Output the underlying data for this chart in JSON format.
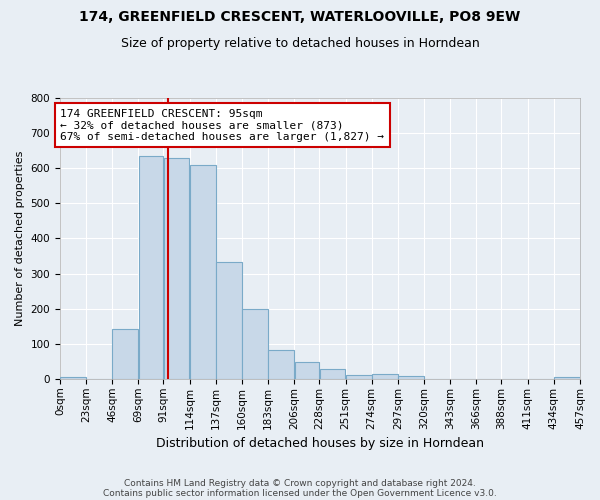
{
  "title1": "174, GREENFIELD CRESCENT, WATERLOOVILLE, PO8 9EW",
  "title2": "Size of property relative to detached houses in Horndean",
  "xlabel": "Distribution of detached houses by size in Horndean",
  "ylabel": "Number of detached properties",
  "bin_labels": [
    "0sqm",
    "23sqm",
    "46sqm",
    "69sqm",
    "91sqm",
    "114sqm",
    "137sqm",
    "160sqm",
    "183sqm",
    "206sqm",
    "228sqm",
    "251sqm",
    "274sqm",
    "297sqm",
    "320sqm",
    "343sqm",
    "366sqm",
    "388sqm",
    "411sqm",
    "434sqm",
    "457sqm"
  ],
  "bin_edges": [
    0,
    23,
    46,
    69,
    91,
    114,
    137,
    160,
    183,
    206,
    228,
    251,
    274,
    297,
    320,
    343,
    366,
    388,
    411,
    434,
    457
  ],
  "counts": [
    5,
    0,
    143,
    635,
    630,
    610,
    333,
    200,
    83,
    47,
    27,
    12,
    13,
    9,
    0,
    0,
    0,
    0,
    0,
    5
  ],
  "bar_color": "#c8d8e8",
  "bar_edge_color": "#7aaac8",
  "property_size": 95,
  "vline_color": "#cc0000",
  "annotation_line1": "174 GREENFIELD CRESCENT: 95sqm",
  "annotation_line2": "← 32% of detached houses are smaller (873)",
  "annotation_line3": "67% of semi-detached houses are larger (1,827) →",
  "annotation_box_color": "#ffffff",
  "annotation_box_edge": "#cc0000",
  "ylim": [
    0,
    800
  ],
  "yticks": [
    0,
    100,
    200,
    300,
    400,
    500,
    600,
    700,
    800
  ],
  "footer1": "Contains HM Land Registry data © Crown copyright and database right 2024.",
  "footer2": "Contains public sector information licensed under the Open Government Licence v3.0.",
  "bg_color": "#e8eef4",
  "grid_color": "#ffffff",
  "title_fontsize": 10,
  "subtitle_fontsize": 9,
  "axis_label_fontsize": 9,
  "tick_fontsize": 7.5,
  "ylabel_fontsize": 8
}
